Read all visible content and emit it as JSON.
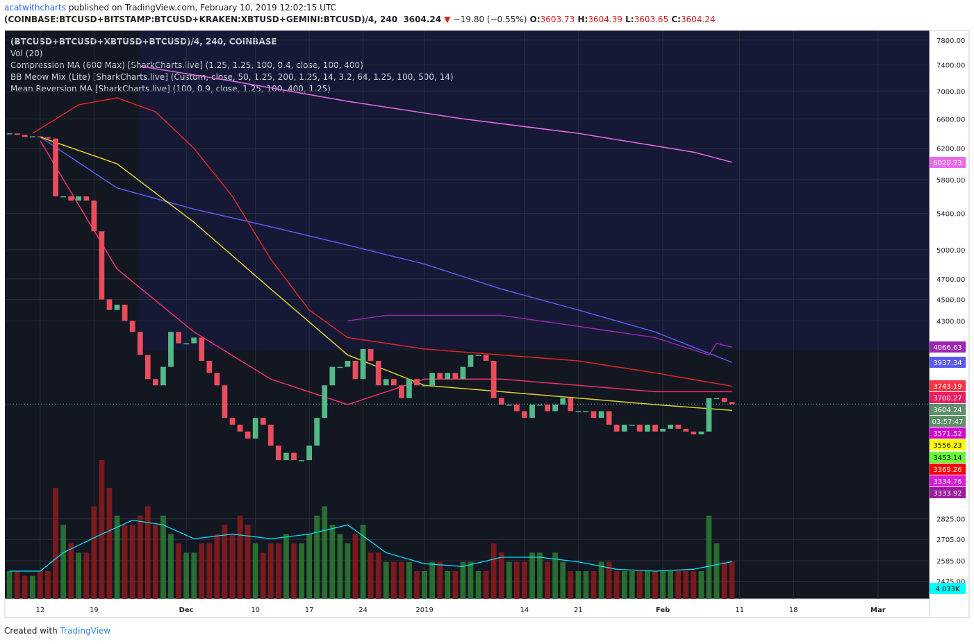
{
  "header": {
    "author": "acatwithcharts",
    "published": "published on TradingView.com, February 10, 2019 12:02:15 UTC",
    "symbol": "(COINBASE:BTCUSD+BITSTAMP:BTCUSD+KRAKEN:XBTUSD+GEMINI:BTCUSD)/4, 240",
    "last": "3604.24",
    "change": "−19.80 (−0.55%)",
    "ohlc": [
      {
        "key": "O:",
        "value": "3603.73"
      },
      {
        "key": "H:",
        "value": "3604.39"
      },
      {
        "key": "L:",
        "value": "3603.65"
      },
      {
        "key": "C:",
        "value": "3604.24"
      }
    ]
  },
  "legend": [
    "(BTCUSD+BTCUSD+XBTUSD+BTCUSD)/4, 240, COINBASE",
    "Vol (20)",
    "Compression MA (600 Max) [SharkCharts.live] (1.25, 1.25, 100, 0.4, close, 100, 400)",
    "BB Meow Mix (Lite) [SharkCharts.live] (Custom, close, 50, 1.25, 200, 1.25, 14, 3.2, 64, 1.25, 100, 500, 14)",
    "Mean Reversion MA [SharkCharts.live] (100, 0.9, close, 1.25, 100, 400, 1.25)"
  ],
  "footer": {
    "text": "Created with",
    "brand": "TradingView"
  },
  "chart_data": {
    "type": "candlestick",
    "log_scale": true,
    "grid": true,
    "up_color": "#53b987",
    "down_color": "#eb4d5c",
    "x": [
      -4,
      -3,
      -2,
      -1,
      0,
      1,
      2,
      3,
      4,
      5,
      6,
      7,
      8,
      9,
      10,
      11,
      12,
      13,
      14,
      15,
      16,
      17,
      18,
      19,
      20,
      21,
      22,
      23,
      24,
      25,
      26,
      27,
      28,
      29,
      30,
      31,
      32,
      33,
      34,
      35,
      36,
      37,
      38,
      39,
      40,
      41,
      42,
      43,
      44,
      45,
      46,
      47,
      48,
      49,
      50,
      51,
      52,
      53,
      54,
      55,
      56,
      57,
      58,
      59,
      60,
      61,
      62,
      63,
      64,
      65,
      66,
      67,
      68,
      69,
      70,
      71,
      72,
      73,
      74,
      75,
      76,
      77,
      78,
      79,
      80,
      81,
      82,
      83,
      84,
      85,
      86,
      87,
      88,
      89,
      90
    ],
    "close": [
      6400,
      6380,
      6350,
      6360,
      6350,
      6330,
      5600,
      5600,
      5550,
      5600,
      5550,
      5200,
      4500,
      4400,
      4450,
      4300,
      4200,
      4000,
      3800,
      3750,
      3900,
      4200,
      4100,
      4100,
      4150,
      3950,
      3850,
      3750,
      3500,
      3450,
      3400,
      3350,
      3500,
      3450,
      3300,
      3200,
      3250,
      3200,
      3200,
      3300,
      3500,
      3750,
      3900,
      3900,
      3950,
      3800,
      4050,
      3950,
      3750,
      3800,
      3750,
      3650,
      3800,
      3750,
      3750,
      3850,
      3800,
      3850,
      3800,
      3900,
      4000,
      4000,
      3950,
      3650,
      3600,
      3600,
      3550,
      3500,
      3600,
      3600,
      3550,
      3600,
      3650,
      3550,
      3550,
      3550,
      3500,
      3550,
      3450,
      3400,
      3450,
      3450,
      3400,
      3450,
      3400,
      3420,
      3450,
      3420,
      3400,
      3380,
      3400,
      3650,
      3650,
      3620,
      3604.24
    ],
    "volume": [
      3,
      3,
      2.5,
      2.5,
      3,
      3,
      12,
      8,
      6,
      5,
      5,
      10,
      15,
      12,
      9,
      8,
      8,
      9,
      10,
      8,
      9,
      7,
      6,
      5,
      5,
      6,
      6,
      7,
      8,
      7,
      9,
      8,
      6,
      5,
      6,
      6,
      7,
      6,
      6,
      7,
      9,
      10,
      8,
      7,
      6,
      7,
      8,
      5,
      5,
      4,
      4,
      4,
      4,
      3,
      3,
      4,
      4,
      3,
      3,
      4,
      4,
      3,
      3,
      6,
      5,
      4,
      4,
      4,
      5,
      5,
      4,
      5,
      4,
      3,
      3,
      3,
      3,
      4,
      4,
      3,
      3,
      3,
      3,
      3,
      3,
      3,
      3,
      3,
      3,
      3,
      3,
      9,
      6,
      4,
      4.033
    ],
    "volume_ma": {
      "color": "#00e5ff",
      "x": [
        -4,
        0,
        3,
        8,
        12,
        16,
        20,
        25,
        30,
        35,
        40,
        45,
        50,
        55,
        60,
        65,
        70,
        75,
        80,
        85,
        90
      ],
      "values": [
        3,
        3,
        5,
        7,
        8.5,
        8,
        6.5,
        7,
        6.5,
        7,
        8,
        5,
        3.8,
        3.5,
        4.5,
        4.5,
        4,
        3.2,
        3,
        3.2,
        4.033
      ]
    },
    "lines": [
      {
        "color": "#e86ce8",
        "x": [
          13,
          25,
          40,
          55,
          70,
          85,
          90
        ],
        "values": [
          7380,
          7150,
          6850,
          6600,
          6400,
          6150,
          6020.73
        ]
      },
      {
        "color": "#5b5bf0",
        "x": [
          0,
          10,
          20,
          30,
          40,
          50,
          60,
          70,
          80,
          90
        ],
        "values": [
          6350,
          5700,
          5450,
          5250,
          5050,
          4850,
          4600,
          4400,
          4200,
          3937.34
        ]
      },
      {
        "color": "#e02424",
        "x": [
          -1,
          5,
          10,
          15,
          20,
          25,
          30,
          35,
          40,
          45,
          50,
          60,
          70,
          80,
          90
        ],
        "values": [
          6400,
          6800,
          6900,
          6700,
          6200,
          5600,
          4900,
          4400,
          4150,
          4100,
          4050,
          4000,
          3950,
          3850,
          3743.19
        ]
      },
      {
        "color": "#e0d12a",
        "x": [
          0,
          10,
          20,
          30,
          40,
          50,
          60,
          70,
          80,
          90
        ],
        "values": [
          6350,
          6000,
          5300,
          4600,
          4000,
          3750,
          3700,
          3650,
          3600,
          3556.23
        ]
      },
      {
        "color": "#9c27b0",
        "x": [
          40,
          45,
          60,
          70,
          80,
          87,
          88,
          90
        ],
        "values": [
          4300,
          4350,
          4350,
          4250,
          4150,
          4000,
          4100,
          4066.63
        ]
      },
      {
        "color": "#f0306a",
        "x": [
          0,
          10,
          20,
          30,
          40,
          50,
          60,
          70,
          80,
          90
        ],
        "values": [
          6300,
          4800,
          4200,
          3800,
          3600,
          3800,
          3800,
          3750,
          3700,
          3700.27
        ]
      }
    ],
    "ylim": [
      2384,
      7960
    ],
    "yticks": [
      {
        "value": 7800,
        "label": "7800.00"
      },
      {
        "value": 7400,
        "label": "7400.00"
      },
      {
        "value": 7000,
        "label": "7000.00"
      },
      {
        "value": 6600,
        "label": "6600.00"
      },
      {
        "value": 6200,
        "label": "6200.00"
      },
      {
        "value": 5800,
        "label": "5800.00"
      },
      {
        "value": 5400,
        "label": "5400.00"
      },
      {
        "value": 5000,
        "label": "5000.00"
      },
      {
        "value": 4700,
        "label": "4700.00"
      },
      {
        "value": 4500,
        "label": "4500.00"
      },
      {
        "value": 4300,
        "label": "4300.00"
      },
      {
        "value": 2825,
        "label": "2825.00"
      },
      {
        "value": 2705,
        "label": "2705.00"
      },
      {
        "value": 2585,
        "label": "2585.00"
      },
      {
        "value": 2475,
        "label": "2475.00"
      }
    ],
    "xlim": [
      -4.6,
      115.7
    ],
    "xticks": [
      {
        "value": 0,
        "label": "12"
      },
      {
        "value": 7,
        "label": "19"
      },
      {
        "value": 19,
        "label": "Dec"
      },
      {
        "value": 28,
        "label": "10"
      },
      {
        "value": 35,
        "label": "17"
      },
      {
        "value": 42,
        "label": "24"
      },
      {
        "value": 50,
        "label": "2019"
      },
      {
        "value": 63,
        "label": "14"
      },
      {
        "value": 70,
        "label": "21"
      },
      {
        "value": 81,
        "label": "Feb"
      },
      {
        "value": 91,
        "label": "11"
      },
      {
        "value": 98,
        "label": "18"
      },
      {
        "value": 109,
        "label": "Mar"
      }
    ],
    "price_labels": [
      {
        "label": "6020.73",
        "color": "#e86ce8",
        "text_color": "#ffffff"
      },
      {
        "label": "4066.63",
        "color": "#9c27b0",
        "text_color": "#ffffff"
      },
      {
        "label": "3937.34",
        "color": "#5b5bf0",
        "text_color": "#ffffff"
      },
      {
        "label": "3743.19",
        "color": "#f23645",
        "text_color": "#ffffff"
      },
      {
        "label": "3700.27",
        "color": "#e91e63",
        "text_color": "#ffffff"
      },
      {
        "label": "3604.24",
        "color": "#5e8f6a",
        "text_color": "#ffffff"
      },
      {
        "label": "03:57:47",
        "color": "#5e8f6a",
        "text_color": "#ffffff"
      },
      {
        "label": "3571.52",
        "color": "#d500d5",
        "text_color": "#ffffff"
      },
      {
        "label": "3556.23",
        "color": "#ffff00",
        "text_color": "#000000"
      },
      {
        "label": "3453.14",
        "color": "#66ff33",
        "text_color": "#000000"
      },
      {
        "label": "3369.26",
        "color": "#ff0000",
        "text_color": "#ffffff"
      },
      {
        "label": "3334.76",
        "color": "#d81bd8",
        "text_color": "#ffffff"
      },
      {
        "label": "3333.92",
        "color": "#9c1a9c",
        "text_color": "#ffffff"
      },
      {
        "label": "4.033K",
        "color": "#00ffff",
        "text_color": "#000000"
      }
    ]
  }
}
